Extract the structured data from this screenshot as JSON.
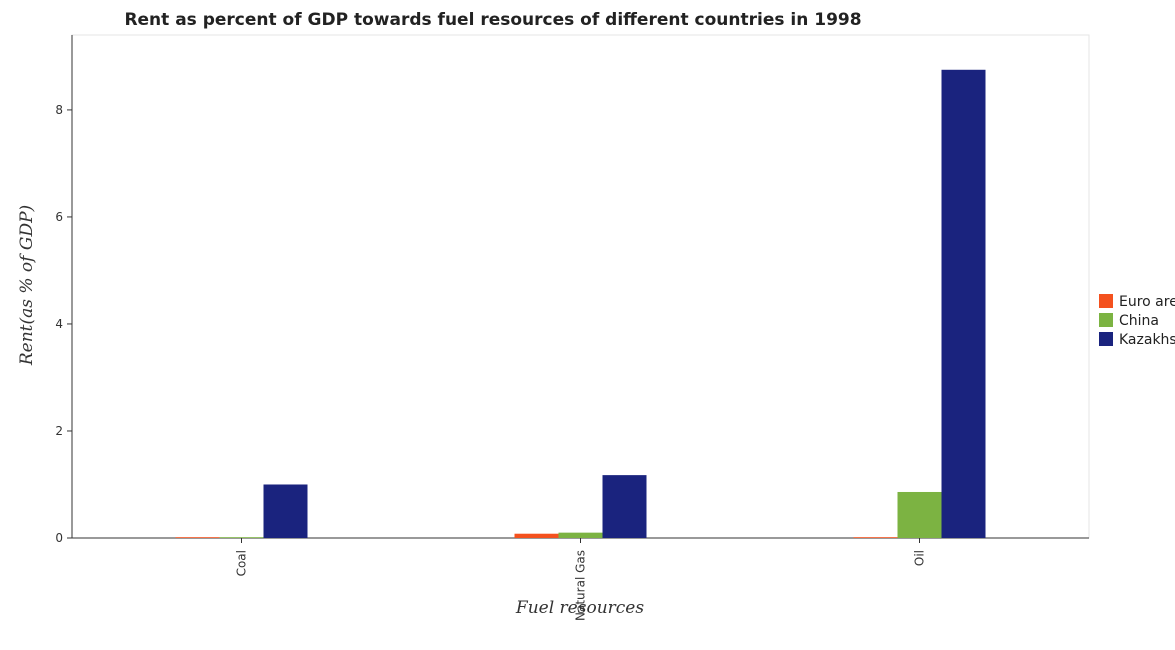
{
  "chart_data": {
    "type": "bar",
    "title": "Rent as percent of GDP towards fuel resources of different countries in 1998",
    "xlabel": "Fuel resources",
    "ylabel": "Rent(as % of GDP)",
    "categories": [
      "Coal",
      "Natural Gas",
      "Oil"
    ],
    "ylim": [
      0,
      9.4
    ],
    "yticks": [
      0,
      2,
      4,
      6,
      8
    ],
    "grid": false,
    "legend_position": "right",
    "series": [
      {
        "name": "Euro area",
        "color": "#f4511e",
        "values": [
          0.002,
          0.08,
          0.013
        ]
      },
      {
        "name": "China",
        "color": "#7cb342",
        "values": [
          0.004,
          0.1,
          0.86
        ]
      },
      {
        "name": "Kazakhstan",
        "color": "#1a237e",
        "values": [
          1.0,
          1.175,
          8.75
        ]
      }
    ]
  }
}
